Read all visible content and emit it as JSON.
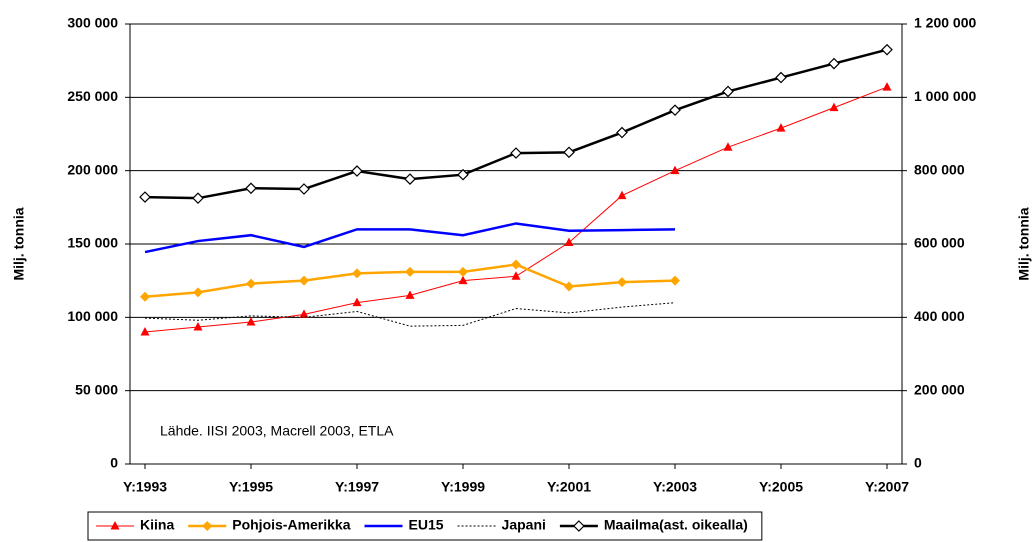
{
  "chart_data": {
    "type": "line",
    "annotation": "Lähde. IISI 2003, Macrell 2003, ETLA",
    "y_label": "Milj. tonnia",
    "y2_label": "Milj. tonnia",
    "categories": [
      "Y:1993",
      null,
      "Y:1995",
      null,
      "Y:1997",
      null,
      "Y:1999",
      null,
      "Y:2001",
      null,
      "Y:2003",
      null,
      "Y:2005",
      null,
      "Y:2007"
    ],
    "ylim": [
      0,
      300000
    ],
    "yticks": [
      0,
      {
        "value": 50000,
        "label": "50 000"
      },
      {
        "value": 100000,
        "label": "100 000"
      },
      {
        "value": 150000,
        "label": "150 000"
      },
      {
        "value": 200000,
        "label": "200 000"
      },
      {
        "value": 250000,
        "label": "250 000"
      },
      {
        "value": 300000,
        "label": "300 000"
      }
    ],
    "y2lim": [
      0,
      1200000
    ],
    "y2ticks": [
      0,
      {
        "value": 200000,
        "label": "200 000"
      },
      {
        "value": 400000,
        "label": "400 000"
      },
      {
        "value": 600000,
        "label": "600 000"
      },
      {
        "value": 800000,
        "label": "800 000"
      },
      {
        "value": 1000000,
        "label": "1 000 000"
      },
      {
        "value": 1200000,
        "label": "1 200 000"
      }
    ],
    "grid": true,
    "legend": "bottom",
    "series": [
      {
        "name": "Kiina",
        "color": "#ff0000",
        "marker": "triangle",
        "width": 1,
        "values": [
          90000,
          93400,
          96800,
          102000,
          110000,
          115000,
          125000,
          128000,
          151000,
          183000,
          200000,
          216000,
          229000,
          243000,
          257000
        ]
      },
      {
        "name": "Pohjois-Amerikka",
        "color": "#ffa500",
        "marker": "diamond",
        "width": 2.5,
        "values": [
          114000,
          117000,
          123000,
          125000,
          130000,
          131000,
          131000,
          136000,
          121000,
          124000,
          125000,
          null,
          null,
          null,
          null
        ]
      },
      {
        "name": "EU15",
        "color": "#0000ff",
        "width": 2.5,
        "values": [
          144500,
          152000,
          156000,
          148000,
          160000,
          160000,
          156000,
          164000,
          159000,
          159500,
          160000,
          null,
          null,
          null,
          null
        ]
      },
      {
        "name": "Japani",
        "color": "#000000",
        "dash": "dotted",
        "width": 1,
        "values": [
          99500,
          98000,
          101000,
          100000,
          104000,
          94000,
          94500,
          106000,
          103000,
          107000,
          110000,
          null,
          null,
          null,
          null
        ]
      },
      {
        "name": "Maailma(ast. oikealla)",
        "color": "#000000",
        "marker": "open-diamond",
        "width": 2.5,
        "axis": "y2",
        "values": [
          728000,
          725000,
          752000,
          750000,
          799000,
          777000,
          789000,
          848000,
          850000,
          904000,
          965000,
          1016000,
          1054000,
          1092000,
          1130000
        ]
      }
    ]
  }
}
